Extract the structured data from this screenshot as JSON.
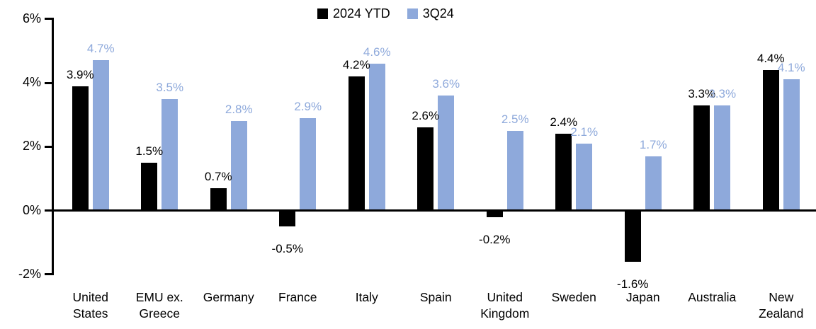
{
  "chart_data": {
    "type": "bar",
    "title": "",
    "xlabel": "",
    "ylabel": "",
    "grid": false,
    "categories": [
      "United States",
      "EMU ex. Greece",
      "Germany",
      "France",
      "Italy",
      "Spain",
      "United Kingdom",
      "Sweden",
      "Japan",
      "Australia",
      "New Zealand"
    ],
    "series": [
      {
        "name": "2024 YTD",
        "color": "#000000",
        "values": [
          3.9,
          1.5,
          0.7,
          -0.5,
          4.2,
          2.6,
          -0.2,
          2.4,
          -1.6,
          3.3,
          4.4
        ]
      },
      {
        "name": "3Q24",
        "color": "#8EA9DB",
        "values": [
          4.7,
          3.5,
          2.8,
          2.9,
          4.6,
          3.6,
          2.5,
          2.1,
          1.7,
          3.3,
          4.1
        ]
      }
    ],
    "value_suffix": "%",
    "ylim": [
      -2,
      6
    ],
    "yticks": [
      -2,
      0,
      2,
      4,
      6
    ],
    "ytick_labels": [
      "-2%",
      "0%",
      "2%",
      "4%",
      "6%"
    ],
    "legend": {
      "position": "top-center",
      "items": [
        "2024 YTD",
        "3Q24"
      ]
    }
  },
  "colors": {
    "background": "#FFFFFF",
    "axis": "#000000",
    "series_2024_ytd": "#000000",
    "series_3q24": "#8EA9DB"
  }
}
